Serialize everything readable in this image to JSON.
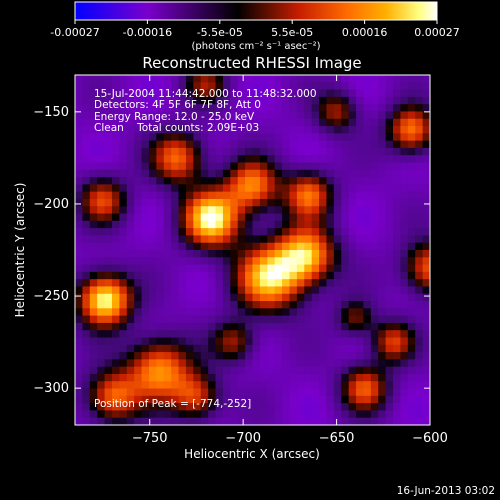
{
  "chart_data": {
    "type": "heatmap",
    "title": "Reconstructed RHESSI Image",
    "colorbar": {
      "ticks": [
        "-0.00027",
        "-0.00016",
        "-5.5e-05",
        "5.5e-05",
        "0.00016",
        "0.00027"
      ],
      "units_label": "(photons cm⁻² s⁻¹ asec⁻²)",
      "range": [
        -0.00027,
        0.00027
      ],
      "colormap": [
        "#0000ff",
        "#7a00cc",
        "#000000",
        "#c81e00",
        "#ff6a00",
        "#ffb000",
        "#ffff80",
        "#ffffff"
      ]
    },
    "xlabel": "Heliocentric X (arcsec)",
    "ylabel": "Heliocentric Y (arcsec)",
    "xlim": [
      -790,
      -600
    ],
    "ylim": [
      -320,
      -130
    ],
    "xticks": [
      {
        "value": -750,
        "label": "−750"
      },
      {
        "value": -700,
        "label": "−700"
      },
      {
        "value": -650,
        "label": "−650"
      },
      {
        "value": -600,
        "label": "−600"
      }
    ],
    "yticks": [
      {
        "value": -150,
        "label": "−150"
      },
      {
        "value": -200,
        "label": "−200"
      },
      {
        "value": -250,
        "label": "−250"
      },
      {
        "value": -300,
        "label": "−300"
      }
    ],
    "annotations": [
      "15-Jul-2004 11:44:42.000 to 11:48:32.000",
      "Detectors: 4F 5F 6F 7F 8F, Att 0",
      "Energy Range: 12.0 - 25.0 keV",
      "Clean    Total counts: 2.09E+03",
      "Position of Peak = [-774,-252]"
    ],
    "peak": {
      "x": -774,
      "y": -252
    },
    "sources": [
      {
        "x": -774,
        "y": -252,
        "sigma": 10,
        "amp": 1.0
      },
      {
        "x": -717,
        "y": -208,
        "sigma": 11,
        "amp": 0.95
      },
      {
        "x": -686,
        "y": -240,
        "sigma": 13,
        "amp": 0.85
      },
      {
        "x": -666,
        "y": -228,
        "sigma": 11,
        "amp": 0.8
      },
      {
        "x": -695,
        "y": -190,
        "sigma": 10,
        "amp": 0.7
      },
      {
        "x": -665,
        "y": -195,
        "sigma": 9,
        "amp": 0.65
      },
      {
        "x": -745,
        "y": -290,
        "sigma": 12,
        "amp": 0.75
      },
      {
        "x": -770,
        "y": -305,
        "sigma": 10,
        "amp": 0.65
      },
      {
        "x": -725,
        "y": -305,
        "sigma": 9,
        "amp": 0.55
      },
      {
        "x": -735,
        "y": -175,
        "sigma": 10,
        "amp": 0.65
      },
      {
        "x": -775,
        "y": -198,
        "sigma": 9,
        "amp": 0.55
      },
      {
        "x": -610,
        "y": -160,
        "sigma": 9,
        "amp": 0.7
      },
      {
        "x": -600,
        "y": -235,
        "sigma": 10,
        "amp": 0.65
      },
      {
        "x": -635,
        "y": -300,
        "sigma": 9,
        "amp": 0.6
      },
      {
        "x": -620,
        "y": -275,
        "sigma": 8,
        "amp": 0.55
      },
      {
        "x": -650,
        "y": -150,
        "sigma": 8,
        "amp": 0.45
      },
      {
        "x": -705,
        "y": -275,
        "sigma": 8,
        "amp": 0.45
      },
      {
        "x": -640,
        "y": -262,
        "sigma": 7,
        "amp": 0.4
      },
      {
        "x": -720,
        "y": -135,
        "sigma": 8,
        "amp": 0.4
      }
    ]
  },
  "footer": {
    "date": "16-Jun-2013 03:02"
  }
}
